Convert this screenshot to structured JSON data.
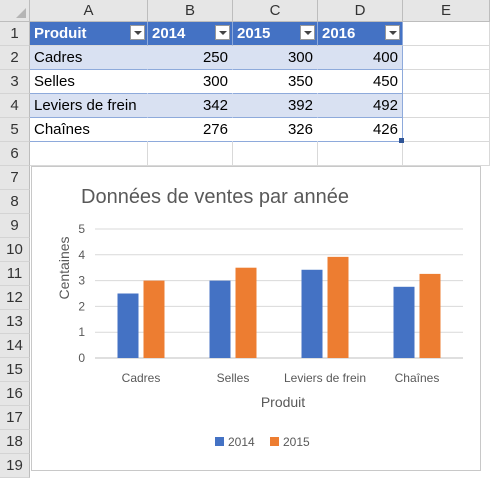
{
  "columns": [
    "A",
    "B",
    "C",
    "D",
    "E"
  ],
  "rows": [
    "1",
    "2",
    "3",
    "4",
    "5",
    "6",
    "7",
    "8",
    "9",
    "10",
    "11",
    "12",
    "13",
    "14",
    "15",
    "16",
    "17",
    "18",
    "19"
  ],
  "table": {
    "headers": [
      "Produit",
      "2014",
      "2015",
      "2016"
    ],
    "data": [
      [
        "Cadres",
        "250",
        "300",
        "400"
      ],
      [
        "Selles",
        "300",
        "350",
        "450"
      ],
      [
        "Leviers de frein",
        "342",
        "392",
        "492"
      ],
      [
        "Chaînes",
        "276",
        "326",
        "426"
      ]
    ]
  },
  "colors": {
    "header": "#4472c4",
    "band": "#d9e1f2",
    "series2014": "#4472c4",
    "series2015": "#ed7d31"
  },
  "chart_data": {
    "type": "bar",
    "title": "Données de ventes par année",
    "xlabel": "Produit",
    "ylabel": "Centaines",
    "categories": [
      "Cadres",
      "Selles",
      "Leviers de frein",
      "Chaînes"
    ],
    "yticks": [
      "0",
      "1",
      "2",
      "3",
      "4",
      "5"
    ],
    "ylim": [
      0,
      5
    ],
    "grid": true,
    "legend_position": "bottom",
    "series": [
      {
        "name": "2014",
        "values": [
          2.5,
          3.0,
          3.42,
          2.76
        ]
      },
      {
        "name": "2015",
        "values": [
          3.0,
          3.5,
          3.92,
          3.26
        ]
      }
    ]
  }
}
